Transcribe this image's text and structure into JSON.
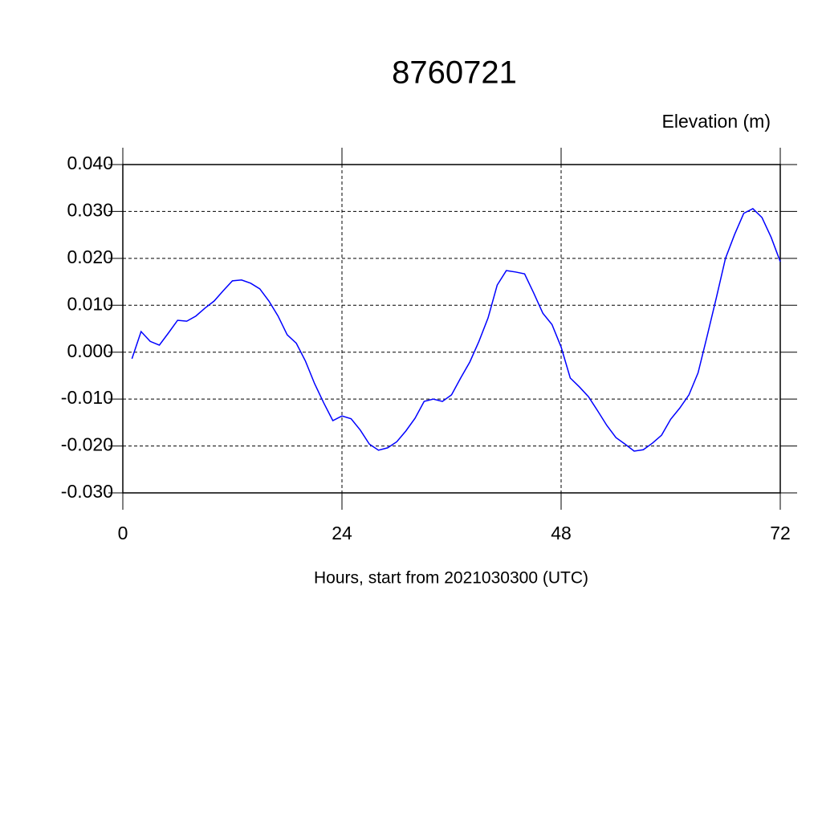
{
  "chart_data": {
    "type": "line",
    "title": "8760721",
    "ylabel": "Elevation (m)",
    "xlabel": "Hours, start from 2021030300 (UTC)",
    "x": [
      1,
      2,
      3,
      4,
      5,
      6,
      7,
      8,
      9,
      10,
      11,
      12,
      13,
      14,
      15,
      16,
      17,
      18,
      19,
      20,
      21,
      22,
      23,
      24,
      25,
      26,
      27,
      28,
      29,
      30,
      31,
      32,
      33,
      34,
      35,
      36,
      37,
      38,
      39,
      40,
      41,
      42,
      43,
      44,
      45,
      46,
      47,
      48,
      49,
      50,
      51,
      52,
      53,
      54,
      55,
      56,
      57,
      58,
      59,
      60,
      61,
      62,
      63,
      64,
      65,
      66,
      67,
      68,
      69,
      70,
      71,
      72
    ],
    "series": [
      {
        "color": "#0000ff",
        "values": [
          -0.0014,
          0.0044,
          0.0023,
          0.0015,
          0.0041,
          0.0068,
          0.0066,
          0.0077,
          0.0094,
          0.0109,
          0.0131,
          0.0152,
          0.0154,
          0.0147,
          0.0135,
          0.0109,
          0.0077,
          0.0037,
          0.0019,
          -0.0019,
          -0.0067,
          -0.0108,
          -0.0146,
          -0.0136,
          -0.0142,
          -0.0166,
          -0.0196,
          -0.0209,
          -0.0204,
          -0.0191,
          -0.0168,
          -0.0141,
          -0.0105,
          -0.01,
          -0.0105,
          -0.0091,
          -0.0055,
          -0.0021,
          0.0023,
          0.0073,
          0.0143,
          0.0174,
          0.0171,
          0.0167,
          0.0126,
          0.0083,
          0.0059,
          0.0011,
          -0.0055,
          -0.0074,
          -0.0095,
          -0.0125,
          -0.0156,
          -0.0182,
          -0.0196,
          -0.0211,
          -0.0208,
          -0.0194,
          -0.0177,
          -0.0143,
          -0.0119,
          -0.0091,
          -0.0044,
          0.0035,
          0.0116,
          0.02,
          0.0251,
          0.0296,
          0.0306,
          0.0287,
          0.0245,
          0.0193
        ]
      }
    ],
    "xlim": [
      0,
      72
    ],
    "xticks": [
      0,
      24,
      48,
      72
    ],
    "ylim": [
      -0.03,
      0.04
    ],
    "yticks": [
      {
        "value": -0.03,
        "label": "-0.030"
      },
      {
        "value": -0.02,
        "label": "-0.020"
      },
      {
        "value": -0.01,
        "label": "-0.010"
      },
      {
        "value": 0,
        "label": "0.000"
      },
      {
        "value": 0.01,
        "label": "0.010"
      },
      {
        "value": 0.02,
        "label": "0.020"
      },
      {
        "value": 0.03,
        "label": "0.030"
      },
      {
        "value": 0.04,
        "label": "0.040"
      }
    ],
    "grid": true
  }
}
